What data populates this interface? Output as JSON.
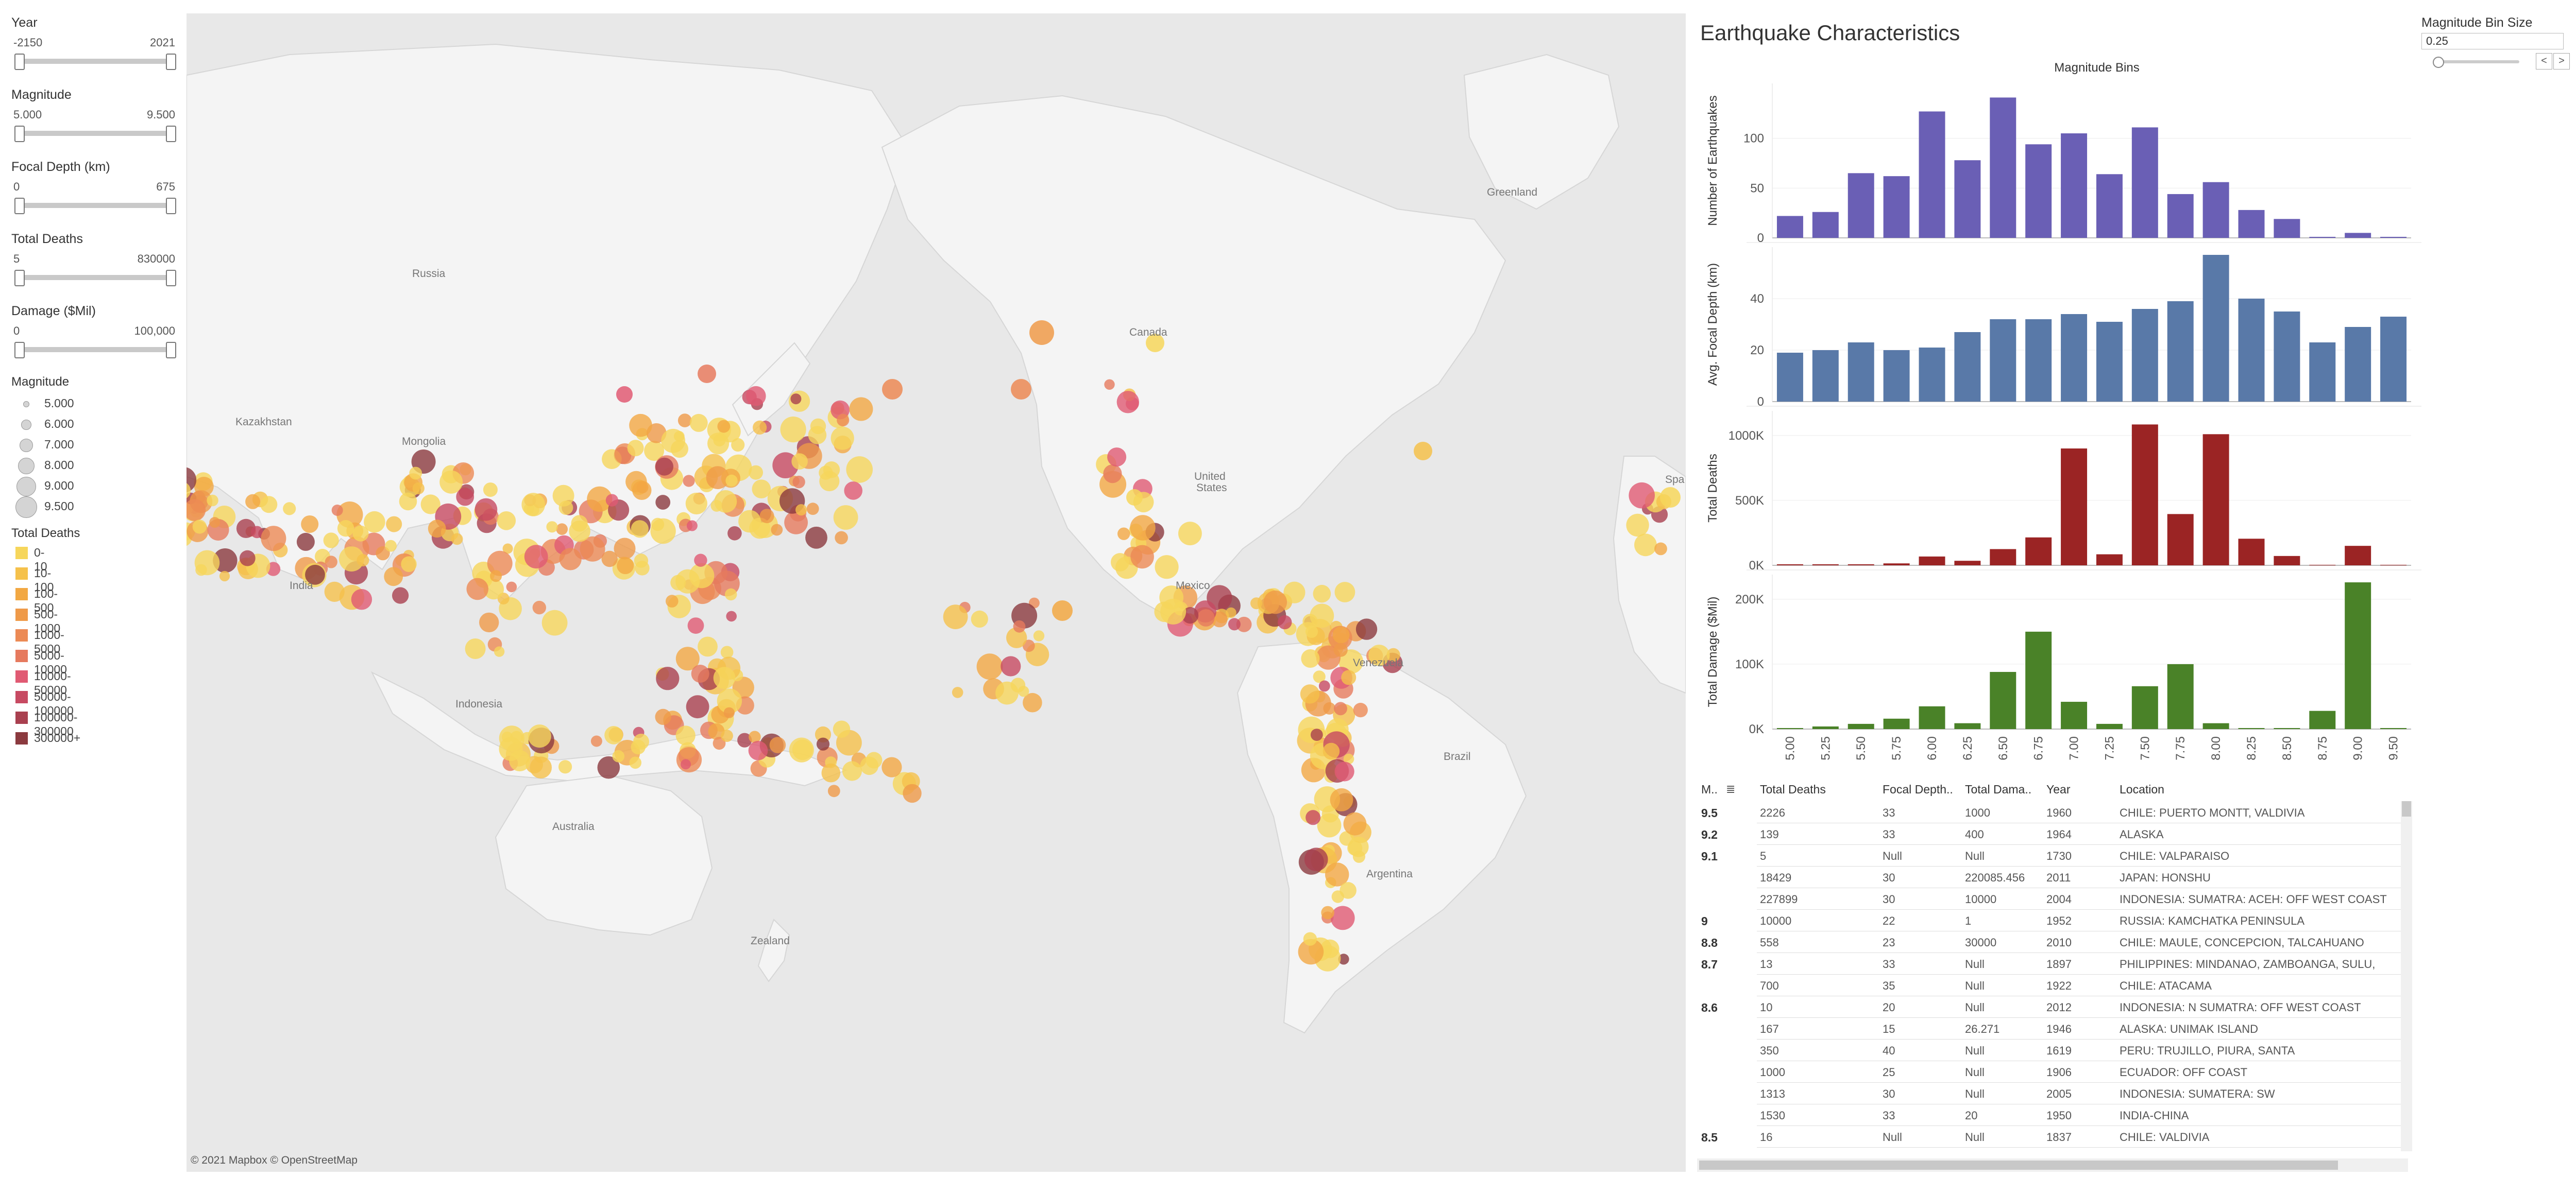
{
  "filters": [
    {
      "title": "Year",
      "lo": "-2150",
      "hi": "2021"
    },
    {
      "title": "Magnitude",
      "lo": "5.000",
      "hi": "9.500"
    },
    {
      "title": "Focal Depth (km)",
      "lo": "0",
      "hi": "675"
    },
    {
      "title": "Total Deaths",
      "lo": "5",
      "hi": "830000"
    },
    {
      "title": "Damage ($Mil)",
      "lo": "0",
      "hi": "100,000"
    }
  ],
  "size_legend": {
    "title": "Magnitude",
    "items": [
      "5.000",
      "6.000",
      "7.000",
      "8.000",
      "9.000",
      "9.500"
    ]
  },
  "color_legend": {
    "title": "Total Deaths",
    "items": [
      {
        "label": "0-10",
        "color": "#f6d65b"
      },
      {
        "label": "10-100",
        "color": "#f5c14b"
      },
      {
        "label": "100-500",
        "color": "#f2a843"
      },
      {
        "label": "500-1000",
        "color": "#ef9a49"
      },
      {
        "label": "1000-5000",
        "color": "#ec8a55"
      },
      {
        "label": "5000-10000",
        "color": "#e67a5e"
      },
      {
        "label": "10000-50000",
        "color": "#e05a73"
      },
      {
        "label": "50000-100000",
        "color": "#c74a62"
      },
      {
        "label": "100000-300000",
        "color": "#a9404f"
      },
      {
        "label": "300000+",
        "color": "#8b3a3f"
      }
    ]
  },
  "map": {
    "labels": {
      "russia": "Russia",
      "kazakhstan": "Kazakhstan",
      "mongolia": "Mongolia",
      "india": "India",
      "indonesia": "Indonesia",
      "australia": "Australia",
      "zealand": "Zealand",
      "canada": "Canada",
      "united": "United",
      "states": "States",
      "mexico": "Mexico",
      "venezuela": "Venezuela",
      "brazil": "Brazil",
      "argentina": "Argentina",
      "greenland": "Greenland",
      "spain": "Spa"
    },
    "credit": "© 2021 Mapbox  © OpenStreetMap"
  },
  "dashboard": {
    "title": "Earthquake Characteristics"
  },
  "parameter": {
    "title": "Magnitude Bin Size",
    "value": "0.25",
    "prev": "<",
    "next": ">"
  },
  "chart_data": {
    "type": "bar",
    "title": "Magnitude Bins",
    "categories": [
      "5.00",
      "5.25",
      "5.50",
      "5.75",
      "6.00",
      "6.25",
      "6.50",
      "6.75",
      "7.00",
      "7.25",
      "7.50",
      "7.75",
      "8.00",
      "8.25",
      "8.50",
      "8.75",
      "9.00",
      "9.50"
    ],
    "panels": [
      {
        "ylabel": "Number of Earthquakes",
        "color": "#6a5fb5",
        "ymax": 150,
        "ticks": [
          "0",
          "50",
          "100"
        ],
        "tick_values": [
          0,
          50,
          100
        ],
        "values": [
          22,
          26,
          65,
          62,
          127,
          78,
          141,
          94,
          105,
          64,
          111,
          44,
          56,
          28,
          19,
          1,
          5,
          1
        ]
      },
      {
        "ylabel": "Avg. Focal Depth (km)",
        "color": "#5979a8",
        "ymax": 58,
        "ticks": [
          "0",
          "20",
          "40"
        ],
        "tick_values": [
          0,
          20,
          40
        ],
        "values": [
          19,
          20,
          23,
          20,
          21,
          27,
          32,
          32,
          34,
          31,
          36,
          39,
          57,
          40,
          35,
          23,
          29,
          33
        ]
      },
      {
        "ylabel": "Total Deaths",
        "color": "#9b2424",
        "ymax": 1150000,
        "ticks": [
          "0K",
          "500K",
          "1000K"
        ],
        "tick_values": [
          0,
          500000,
          1000000
        ],
        "values": [
          3000,
          5000,
          4000,
          15000,
          68000,
          35000,
          125000,
          215000,
          900000,
          85000,
          1085000,
          395000,
          1010000,
          205000,
          72000,
          0,
          150000,
          0
        ]
      },
      {
        "ylabel": "Total Damage ($Mil)",
        "color": "#4a8228",
        "ymax": 230000,
        "ticks": [
          "0K",
          "100K",
          "200K"
        ],
        "tick_values": [
          0,
          100000,
          200000
        ],
        "values": [
          500,
          4000,
          8000,
          16000,
          35000,
          9000,
          88000,
          150000,
          42000,
          8000,
          66000,
          100000,
          9000,
          1500,
          500,
          28000,
          226000,
          500
        ]
      }
    ]
  },
  "table": {
    "headers": [
      "M..",
      "Total Deaths",
      "Focal Depth..",
      "Total Dama..",
      "Year",
      "Location"
    ],
    "rows": [
      {
        "mag": "9.5",
        "deaths": "2226",
        "depth": "33",
        "damage": "1000",
        "year": "1960",
        "loc": "CHILE:  PUERTO MONTT, VALDIVIA"
      },
      {
        "mag": "9.2",
        "deaths": "139",
        "depth": "33",
        "damage": "400",
        "year": "1964",
        "loc": "ALASKA"
      },
      {
        "mag": "9.1",
        "deaths": "5",
        "depth": "Null",
        "damage": "Null",
        "year": "1730",
        "loc": "CHILE:  VALPARAISO"
      },
      {
        "mag": "",
        "deaths": "18429",
        "depth": "30",
        "damage": "220085.456",
        "year": "2011",
        "loc": "JAPAN:  HONSHU"
      },
      {
        "mag": "",
        "deaths": "227899",
        "depth": "30",
        "damage": "10000",
        "year": "2004",
        "loc": "INDONESIA:  SUMATRA:  ACEH:  OFF WEST COAST"
      },
      {
        "mag": "9",
        "deaths": "10000",
        "depth": "22",
        "damage": "1",
        "year": "1952",
        "loc": "RUSSIA:  KAMCHATKA PENINSULA"
      },
      {
        "mag": "8.8",
        "deaths": "558",
        "depth": "23",
        "damage": "30000",
        "year": "2010",
        "loc": "CHILE:  MAULE, CONCEPCION, TALCAHUANO"
      },
      {
        "mag": "8.7",
        "deaths": "13",
        "depth": "33",
        "damage": "Null",
        "year": "1897",
        "loc": "PHILIPPINES:  MINDANAO, ZAMBOANGA, SULU,"
      },
      {
        "mag": "",
        "deaths": "700",
        "depth": "35",
        "damage": "Null",
        "year": "1922",
        "loc": "CHILE:  ATACAMA"
      },
      {
        "mag": "8.6",
        "deaths": "10",
        "depth": "20",
        "damage": "Null",
        "year": "2012",
        "loc": "INDONESIA:  N SUMATRA:  OFF WEST COAST"
      },
      {
        "mag": "",
        "deaths": "167",
        "depth": "15",
        "damage": "26.271",
        "year": "1946",
        "loc": "ALASKA:  UNIMAK ISLAND"
      },
      {
        "mag": "",
        "deaths": "350",
        "depth": "40",
        "damage": "Null",
        "year": "1619",
        "loc": "PERU:  TRUJILLO, PIURA, SANTA"
      },
      {
        "mag": "",
        "deaths": "1000",
        "depth": "25",
        "damage": "Null",
        "year": "1906",
        "loc": "ECUADOR:  OFF COAST"
      },
      {
        "mag": "",
        "deaths": "1313",
        "depth": "30",
        "damage": "Null",
        "year": "2005",
        "loc": "INDONESIA:  SUMATERA:  SW"
      },
      {
        "mag": "",
        "deaths": "1530",
        "depth": "33",
        "damage": "20",
        "year": "1950",
        "loc": "INDIA-CHINA"
      },
      {
        "mag": "8.5",
        "deaths": "16",
        "depth": "Null",
        "damage": "Null",
        "year": "1837",
        "loc": "CHILE:  VALDIVIA"
      }
    ]
  }
}
